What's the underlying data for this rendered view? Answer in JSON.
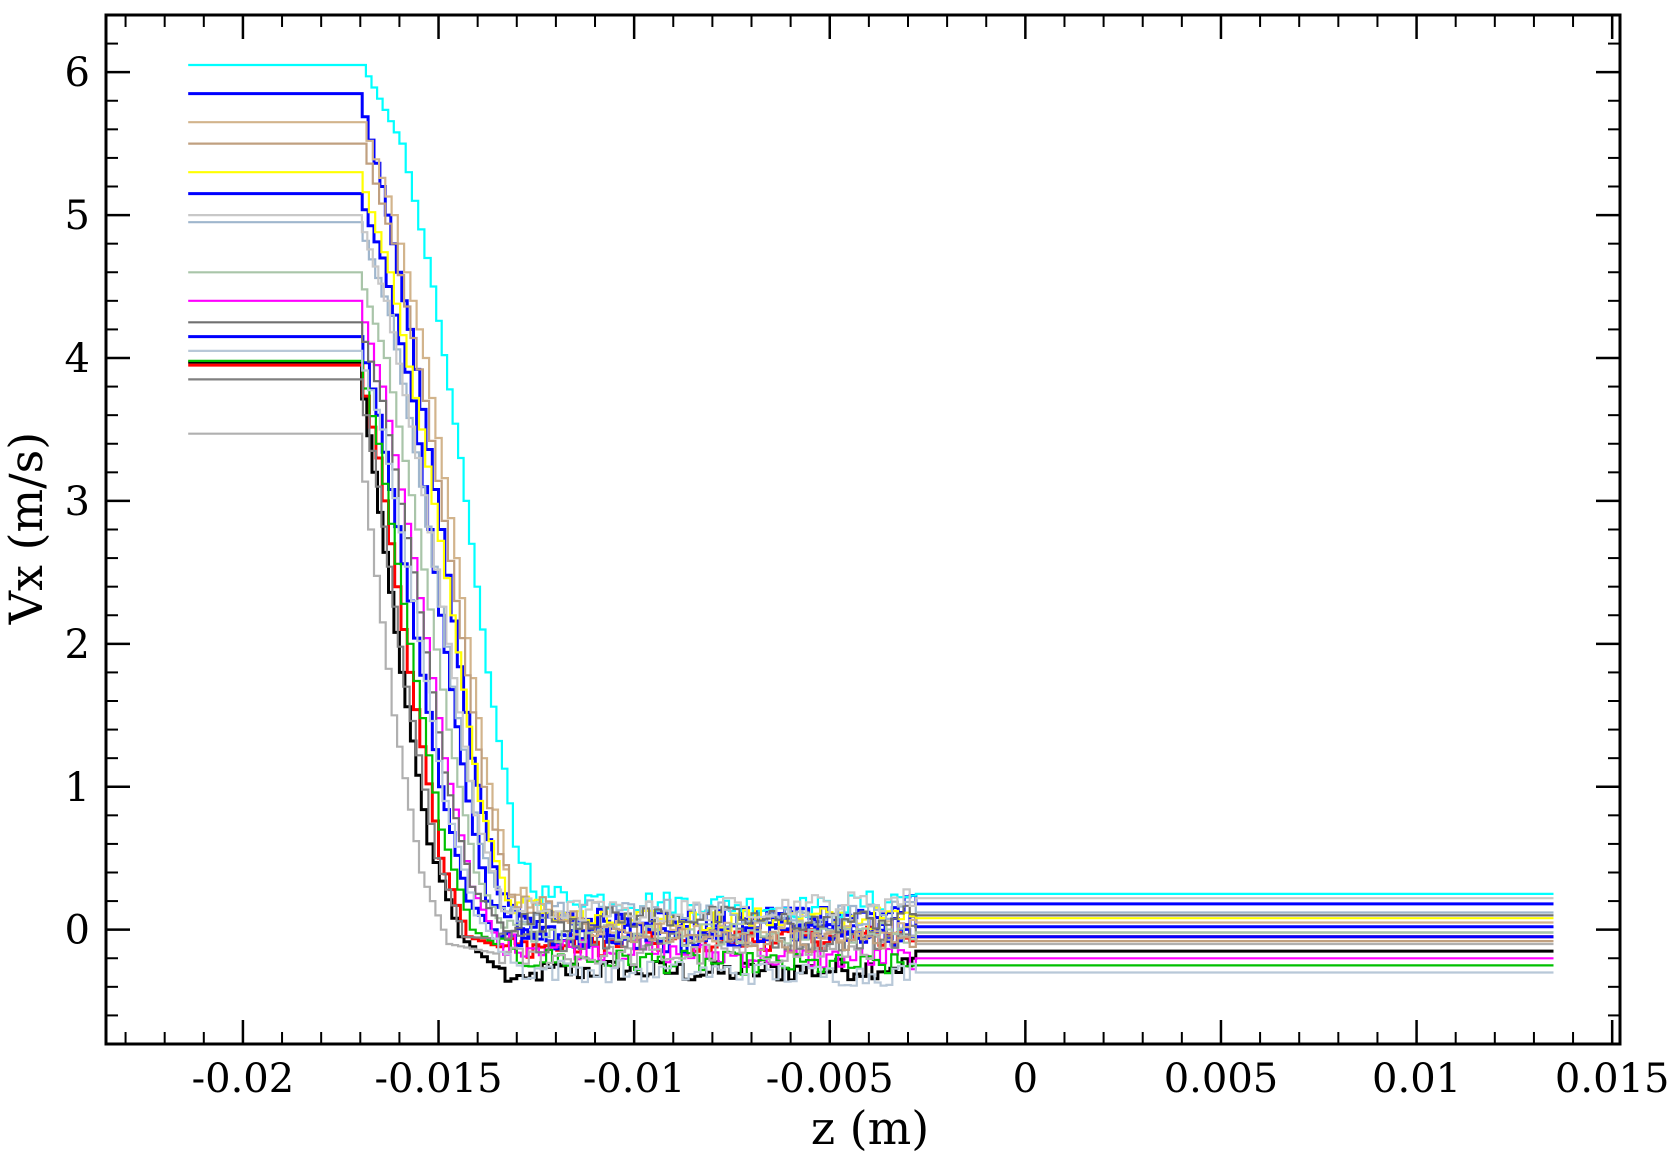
{
  "chart_data": {
    "type": "line",
    "title": "",
    "xlabel": "z (m)",
    "ylabel": "Vx (m/s)",
    "xlim": [
      -0.0235,
      0.0152
    ],
    "ylim": [
      -0.8,
      6.4
    ],
    "x_ticks": [
      -0.02,
      -0.015,
      -0.01,
      -0.005,
      0,
      0.005,
      0.01,
      0.015
    ],
    "x_tick_labels": [
      "-0.02",
      "-0.015",
      "-0.01",
      "-0.005",
      "0",
      "0.005",
      "0.01",
      "0.015"
    ],
    "y_ticks": [
      0,
      1,
      2,
      3,
      4,
      5,
      6
    ],
    "y_tick_labels": [
      "0",
      "1",
      "2",
      "3",
      "4",
      "5",
      "6"
    ],
    "grid": false,
    "legend": "none",
    "series_count_approx": 150,
    "series": [
      {
        "color": "#000000",
        "values": [
          [
            -0.0214,
            3.97
          ],
          [
            -0.0171,
            3.97
          ],
          [
            -0.0167,
            3.2
          ],
          [
            -0.016,
            1.8
          ],
          [
            -0.0153,
            0.6
          ],
          [
            -0.0145,
            -0.05
          ],
          [
            -0.013,
            -0.4
          ],
          [
            -0.0125,
            -0.3
          ],
          [
            -0.011,
            -0.28
          ],
          [
            -0.008,
            -0.3
          ],
          [
            -0.005,
            -0.28
          ],
          [
            -0.003,
            -0.25
          ],
          [
            -0.0028,
            -0.15
          ],
          [
            0.0135,
            -0.15
          ]
        ]
      },
      {
        "color": "#ff0000",
        "values": [
          [
            -0.0214,
            3.95
          ],
          [
            -0.0171,
            3.95
          ],
          [
            -0.0166,
            3.3
          ],
          [
            -0.0158,
            1.8
          ],
          [
            -0.015,
            0.5
          ],
          [
            -0.0143,
            -0.05
          ],
          [
            -0.0135,
            -0.12
          ],
          [
            -0.01,
            -0.1
          ],
          [
            -0.005,
            -0.05
          ],
          [
            -0.0028,
            -0.05
          ],
          [
            0.0135,
            -0.05
          ]
        ]
      },
      {
        "color": "#0000ff",
        "values": [
          [
            -0.0214,
            5.85
          ],
          [
            -0.0171,
            5.85
          ],
          [
            -0.0165,
            5.2
          ],
          [
            -0.0158,
            4.2
          ],
          [
            -0.015,
            2.8
          ],
          [
            -0.0142,
            1.2
          ],
          [
            -0.0135,
            0.25
          ],
          [
            -0.0125,
            0.05
          ],
          [
            -0.01,
            0.1
          ],
          [
            -0.008,
            0.05
          ],
          [
            -0.006,
            0.12
          ],
          [
            -0.004,
            0.1
          ],
          [
            -0.0028,
            0.18
          ],
          [
            0.0135,
            0.18
          ]
        ]
      },
      {
        "color": "#0000ff",
        "values": [
          [
            -0.0214,
            5.15
          ],
          [
            -0.0171,
            5.15
          ],
          [
            -0.0165,
            4.7
          ],
          [
            -0.0157,
            3.7
          ],
          [
            -0.015,
            2.2
          ],
          [
            -0.0143,
            0.9
          ],
          [
            -0.0138,
            0.2
          ],
          [
            -0.0125,
            -0.05
          ],
          [
            -0.01,
            -0.1
          ],
          [
            -0.007,
            -0.05
          ],
          [
            -0.005,
            0.0
          ],
          [
            -0.0028,
            -0.05
          ],
          [
            0.0135,
            -0.05
          ]
        ]
      },
      {
        "color": "#0000ff",
        "values": [
          [
            -0.0214,
            4.15
          ],
          [
            -0.0171,
            4.15
          ],
          [
            -0.0166,
            3.6
          ],
          [
            -0.0158,
            2.3
          ],
          [
            -0.015,
            1.0
          ],
          [
            -0.0143,
            0.2
          ],
          [
            -0.0135,
            -0.05
          ],
          [
            -0.011,
            -0.05
          ],
          [
            -0.008,
            0.0
          ],
          [
            -0.004,
            0.0
          ],
          [
            -0.0028,
            0.02
          ],
          [
            0.0135,
            0.02
          ]
        ]
      },
      {
        "color": "#00ffff",
        "values": [
          [
            -0.0214,
            6.05
          ],
          [
            -0.017,
            6.05
          ],
          [
            -0.016,
            5.5
          ],
          [
            -0.0152,
            4.5
          ],
          [
            -0.0145,
            3.3
          ],
          [
            -0.0138,
            1.8
          ],
          [
            -0.0131,
            0.6
          ],
          [
            -0.0125,
            0.25
          ],
          [
            -0.01,
            0.2
          ],
          [
            -0.005,
            0.15
          ],
          [
            -0.0028,
            0.25
          ],
          [
            0.0135,
            0.25
          ]
        ]
      },
      {
        "color": "#ffff00",
        "values": [
          [
            -0.0214,
            5.3
          ],
          [
            -0.0171,
            5.3
          ],
          [
            -0.0163,
            4.6
          ],
          [
            -0.0155,
            3.5
          ],
          [
            -0.0147,
            2.2
          ],
          [
            -0.014,
            0.9
          ],
          [
            -0.0133,
            0.2
          ],
          [
            -0.011,
            0.05
          ],
          [
            -0.006,
            0.08
          ],
          [
            -0.0028,
            0.08
          ],
          [
            0.0135,
            0.08
          ]
        ]
      },
      {
        "color": "#ff00ff",
        "values": [
          [
            -0.0214,
            4.4
          ],
          [
            -0.0171,
            4.4
          ],
          [
            -0.0165,
            3.8
          ],
          [
            -0.0157,
            2.6
          ],
          [
            -0.0149,
            1.2
          ],
          [
            -0.0142,
            0.3
          ],
          [
            -0.0135,
            -0.1
          ],
          [
            -0.01,
            -0.15
          ],
          [
            -0.006,
            -0.2
          ],
          [
            -0.0028,
            -0.2
          ],
          [
            0.0135,
            -0.2
          ]
        ]
      },
      {
        "color": "#00c000",
        "values": [
          [
            -0.0214,
            3.98
          ],
          [
            -0.0171,
            3.98
          ],
          [
            -0.0166,
            3.4
          ],
          [
            -0.0158,
            2.0
          ],
          [
            -0.015,
            0.7
          ],
          [
            -0.0142,
            0.0
          ],
          [
            -0.013,
            -0.2
          ],
          [
            -0.01,
            -0.22
          ],
          [
            -0.005,
            -0.25
          ],
          [
            -0.0028,
            -0.25
          ],
          [
            0.0135,
            -0.25
          ]
        ]
      },
      {
        "color": "#b0b0b0",
        "values": [
          [
            -0.0214,
            3.47
          ],
          [
            -0.0171,
            3.47
          ],
          [
            -0.0168,
            2.8
          ],
          [
            -0.0162,
            1.5
          ],
          [
            -0.0155,
            0.4
          ],
          [
            -0.0148,
            -0.1
          ],
          [
            -0.013,
            -0.2
          ],
          [
            -0.009,
            -0.18
          ],
          [
            -0.005,
            -0.15
          ],
          [
            -0.0028,
            -0.1
          ],
          [
            0.0135,
            -0.1
          ]
        ]
      },
      {
        "color": "#808080",
        "values": [
          [
            -0.0214,
            3.85
          ],
          [
            -0.0171,
            3.85
          ],
          [
            -0.0166,
            3.1
          ],
          [
            -0.0159,
            1.7
          ],
          [
            -0.0151,
            0.5
          ],
          [
            -0.0144,
            -0.05
          ],
          [
            -0.0125,
            -0.08
          ],
          [
            -0.008,
            -0.05
          ],
          [
            -0.004,
            -0.08
          ],
          [
            -0.0028,
            -0.02
          ],
          [
            0.0135,
            -0.02
          ]
        ]
      },
      {
        "color": "#d2b48c",
        "values": [
          [
            -0.0214,
            5.65
          ],
          [
            -0.017,
            5.65
          ],
          [
            -0.0162,
            5.0
          ],
          [
            -0.0154,
            4.0
          ],
          [
            -0.0146,
            2.6
          ],
          [
            -0.0139,
            1.2
          ],
          [
            -0.0132,
            0.3
          ],
          [
            -0.012,
            0.05
          ],
          [
            -0.008,
            -0.02
          ],
          [
            -0.004,
            0.0
          ],
          [
            -0.0028,
            0.05
          ],
          [
            0.0135,
            0.05
          ]
        ]
      },
      {
        "color": "#9fb6cd",
        "values": [
          [
            -0.0214,
            4.95
          ],
          [
            -0.0171,
            4.95
          ],
          [
            -0.0163,
            4.3
          ],
          [
            -0.0155,
            3.1
          ],
          [
            -0.0147,
            1.7
          ],
          [
            -0.014,
            0.6
          ],
          [
            -0.0133,
            0.1
          ],
          [
            -0.01,
            0.15
          ],
          [
            -0.006,
            0.1
          ],
          [
            -0.0028,
            0.12
          ],
          [
            0.0135,
            0.12
          ]
        ]
      },
      {
        "color": "#a9c5a9",
        "values": [
          [
            -0.0214,
            4.6
          ],
          [
            -0.0171,
            4.6
          ],
          [
            -0.0164,
            4.0
          ],
          [
            -0.0156,
            2.8
          ],
          [
            -0.0148,
            1.4
          ],
          [
            -0.0141,
            0.4
          ],
          [
            -0.0134,
            0.0
          ],
          [
            -0.01,
            -0.05
          ],
          [
            -0.006,
            -0.02
          ],
          [
            -0.0028,
            -0.02
          ],
          [
            0.0135,
            -0.02
          ]
        ]
      },
      {
        "color": "#c0a080",
        "values": [
          [
            -0.0214,
            5.5
          ],
          [
            -0.017,
            5.5
          ],
          [
            -0.0162,
            4.8
          ],
          [
            -0.0154,
            3.7
          ],
          [
            -0.0146,
            2.3
          ],
          [
            -0.0139,
            1.0
          ],
          [
            -0.0132,
            0.25
          ],
          [
            -0.011,
            0.0
          ],
          [
            -0.007,
            -0.08
          ],
          [
            -0.0028,
            -0.08
          ],
          [
            0.0135,
            -0.08
          ]
        ]
      },
      {
        "color": "#707070",
        "values": [
          [
            -0.0214,
            4.25
          ],
          [
            -0.0171,
            4.25
          ],
          [
            -0.0165,
            3.7
          ],
          [
            -0.0157,
            2.5
          ],
          [
            -0.0149,
            1.1
          ],
          [
            -0.0142,
            0.3
          ],
          [
            -0.0135,
            0.05
          ],
          [
            -0.009,
            0.1
          ],
          [
            -0.005,
            0.05
          ],
          [
            -0.0028,
            0.1
          ],
          [
            0.0135,
            0.1
          ]
        ]
      },
      {
        "color": "#c8c8c8",
        "values": [
          [
            -0.0214,
            5.0
          ],
          [
            -0.0171,
            5.0
          ],
          [
            -0.0164,
            4.4
          ],
          [
            -0.0156,
            3.3
          ],
          [
            -0.0148,
            2.0
          ],
          [
            -0.0141,
            0.8
          ],
          [
            -0.0134,
            0.15
          ],
          [
            -0.01,
            0.12
          ],
          [
            -0.005,
            0.18
          ],
          [
            -0.0028,
            0.22
          ],
          [
            0.0135,
            0.22
          ]
        ]
      },
      {
        "color": "#b8c8d8",
        "values": [
          [
            -0.0214,
            4.05
          ],
          [
            -0.0171,
            4.05
          ],
          [
            -0.0165,
            3.5
          ],
          [
            -0.0157,
            2.3
          ],
          [
            -0.0149,
            0.9
          ],
          [
            -0.0141,
            0.1
          ],
          [
            -0.013,
            -0.28
          ],
          [
            -0.008,
            -0.3
          ],
          [
            -0.004,
            -0.32
          ],
          [
            -0.0028,
            -0.3
          ],
          [
            0.0135,
            -0.3
          ]
        ]
      }
    ]
  }
}
